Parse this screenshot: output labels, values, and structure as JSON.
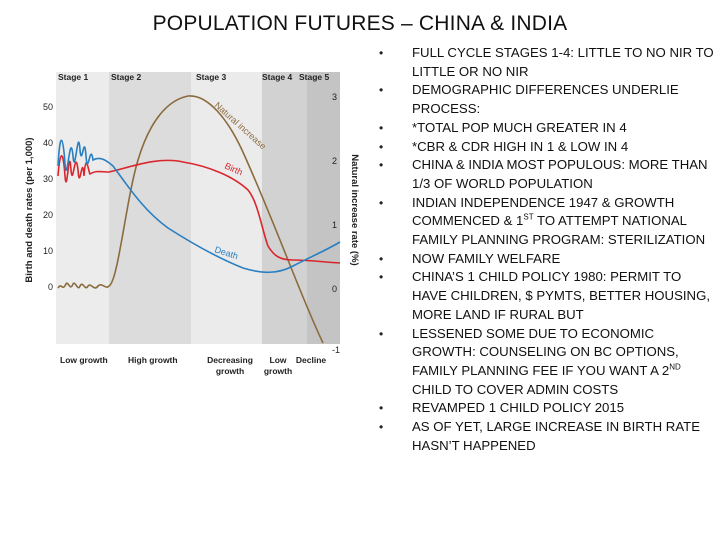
{
  "title": "POPULATION FUTURES – CHINA & INDIA",
  "diagram": {
    "stages": [
      "Stage 1",
      "Stage 2",
      "Stage 3",
      "Stage 4",
      "Stage 5"
    ],
    "growth_labels": [
      "Low growth",
      "High growth",
      "Decreasing",
      "growth",
      "Low",
      "growth",
      "Decline"
    ],
    "left_axis_label": "Birth and death rates (per 1,000)",
    "right_axis_label": "Natural increase rate (%)",
    "left_ticks": [
      "50",
      "40",
      "30",
      "20",
      "10",
      "0"
    ],
    "right_ticks": [
      "3",
      "2",
      "1",
      "0",
      "-1"
    ],
    "curve_labels": {
      "natural": "Natural increase",
      "birth": "Birth",
      "death": "Death"
    },
    "colors": {
      "birth": "#d9262c",
      "death": "#2a7fc1",
      "natural": "#8b6b3d"
    }
  },
  "bullets": [
    {
      "text": "FULL CYCLE STAGES 1-4: LITTLE TO NO NIR TO LITTLE OR NO NIR"
    },
    {
      "text": "DEMOGRAPHIC DIFFERENCES UNDERLIE PROCESS:"
    },
    {
      "text": "*TOTAL POP MUCH GREATER IN 4"
    },
    {
      "text": "*CBR & CDR HIGH IN 1 & LOW IN 4"
    },
    {
      "text": "CHINA & INDIA MOST POPULOUS: MORE THAN 1/3 OF WORLD POPULATION"
    },
    {
      "pre": "INDIAN INDEPENDENCE 1947 & GROWTH COMMENCED & 1",
      "sup": "ST",
      "post": " TO ATTEMPT NATIONAL FAMILY PLANNING PROGRAM: STERILIZATION"
    },
    {
      "text": "NOW FAMILY WELFARE"
    },
    {
      "text": "CHINA’S 1 CHILD POLICY 1980: PERMIT TO HAVE CHILDREN, $ PYMTS, BETTER HOUSING, MORE LAND IF RURAL BUT"
    },
    {
      "pre": "LESSENED SOME DUE TO ECONOMIC GROWTH: COUNSELING ON BC OPTIONS, FAMILY PLANNING FEE IF YOU WANT A 2",
      "sup": "ND",
      "post": " CHILD TO COVER ADMIN COSTS"
    },
    {
      "text": "REVAMPED 1 CHILD POLICY 2015"
    },
    {
      "text": "AS OF YET, LARGE INCREASE IN BIRTH RATE HASN’T HAPPENED"
    }
  ]
}
